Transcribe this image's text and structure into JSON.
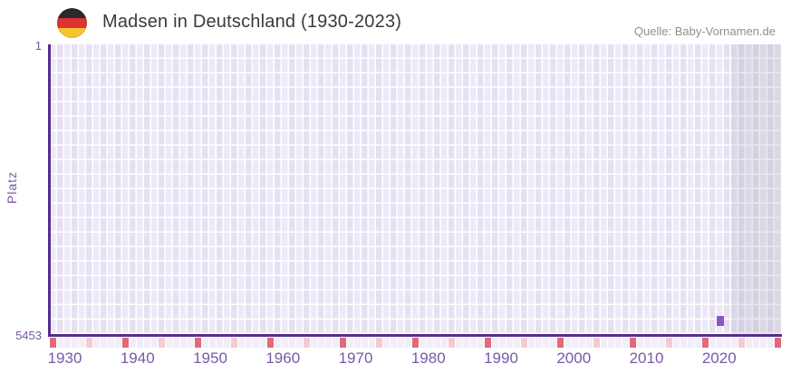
{
  "header": {
    "title": "Madsen in Deutschland (1930-2023)",
    "source": "Quelle: Baby-Vornamen.de"
  },
  "y_axis": {
    "label": "Platz",
    "top_tick": "1",
    "bottom_tick": "5453"
  },
  "chart_data": {
    "type": "bar",
    "title": "Madsen in Deutschland (1930-2023)",
    "xlabel": "",
    "ylabel": "Platz",
    "x_tick_labels": [
      "1930",
      "1940",
      "1950",
      "1960",
      "1970",
      "1980",
      "1990",
      "2000",
      "2010",
      "2020"
    ],
    "x_axis_years": [
      1928,
      2028
    ],
    "y_axis": {
      "top": 1,
      "bottom": 5453,
      "inverted": true
    },
    "series": [
      {
        "name": "Madsen",
        "points": [
          {
            "year": 2020,
            "platz": 5453
          }
        ]
      }
    ],
    "shaded_region": {
      "from_year": 2022,
      "to_year": 2028
    },
    "tick_markers": {
      "decade_step": 10,
      "half_decade_step": 5
    },
    "colors": {
      "bar": "#8b57c6",
      "axis": "#552e8c",
      "tick_text": "#7958a8",
      "grid_cell_light": "#eee9f8",
      "grid_cell_dark": "#e6e1f2",
      "shaded_overlay": "rgba(130,130,148,0.17)",
      "decade_marker": "#e0697a",
      "half_decade_marker": "#f2cbd5",
      "marker_base": "#f1eef9",
      "title_text": "#3a3a3a",
      "source_text": "#8f8f8f",
      "flag_black": "#2a2a2a",
      "flag_red": "#dd3333",
      "flag_gold": "#f8c52f"
    }
  }
}
